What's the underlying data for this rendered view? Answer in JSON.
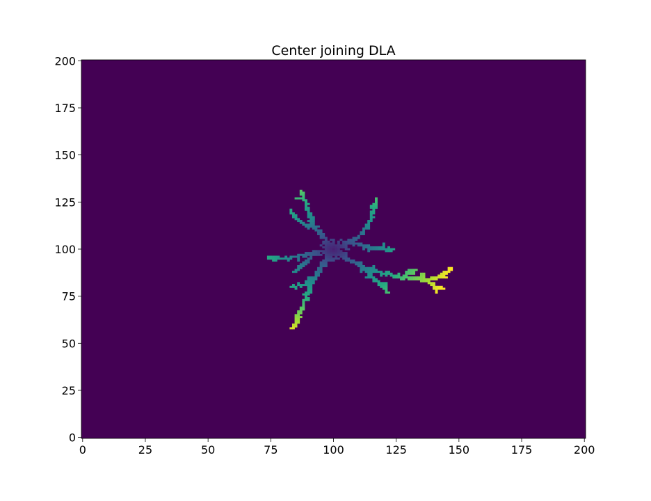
{
  "chart_data": {
    "type": "heatmap",
    "title": "Center joining DLA",
    "xlabel": "",
    "ylabel": "",
    "xlim": [
      0,
      201
    ],
    "ylim": [
      0,
      201
    ],
    "x_ticks": [
      0,
      25,
      50,
      75,
      100,
      125,
      150,
      175,
      200
    ],
    "y_ticks": [
      0,
      25,
      50,
      75,
      100,
      125,
      150,
      175,
      200
    ],
    "x_tick_labels": [
      "0",
      "25",
      "50",
      "75",
      "100",
      "125",
      "150",
      "175",
      "200"
    ],
    "y_tick_labels": [
      "0",
      "25",
      "50",
      "75",
      "100",
      "125",
      "150",
      "175",
      "200"
    ],
    "colormap": "viridis",
    "background_color": "#440154",
    "grid": false,
    "seed": [
      100,
      100
    ],
    "branches": [
      {
        "name": "upper-left",
        "points": [
          [
            100,
            100
          ],
          [
            96,
            106
          ],
          [
            92,
            112
          ],
          [
            90,
            118
          ],
          [
            89,
            124
          ],
          [
            87,
            130
          ]
        ]
      },
      {
        "name": "upper-left-side",
        "points": [
          [
            92,
            112
          ],
          [
            88,
            113
          ],
          [
            85,
            116
          ],
          [
            83,
            120
          ]
        ]
      },
      {
        "name": "upper-right",
        "points": [
          [
            100,
            100
          ],
          [
            106,
            104
          ],
          [
            111,
            108
          ],
          [
            114,
            113
          ],
          [
            116,
            120
          ],
          [
            117,
            126
          ]
        ]
      },
      {
        "name": "right-side",
        "points": [
          [
            108,
            103
          ],
          [
            113,
            101
          ],
          [
            119,
            100
          ],
          [
            124,
            100
          ]
        ]
      },
      {
        "name": "left",
        "points": [
          [
            100,
            100
          ],
          [
            94,
            99
          ],
          [
            88,
            97
          ],
          [
            82,
            95
          ],
          [
            77,
            95
          ],
          [
            74,
            96
          ]
        ]
      },
      {
        "name": "left-lower",
        "points": [
          [
            94,
            99
          ],
          [
            88,
            92
          ],
          [
            85,
            88
          ]
        ]
      },
      {
        "name": "lower-left",
        "points": [
          [
            100,
            100
          ],
          [
            96,
            92
          ],
          [
            93,
            85
          ],
          [
            90,
            78
          ],
          [
            88,
            71
          ],
          [
            86,
            64
          ],
          [
            84,
            58
          ]
        ]
      },
      {
        "name": "lower-left-side",
        "points": [
          [
            93,
            85
          ],
          [
            88,
            81
          ],
          [
            83,
            80
          ]
        ]
      },
      {
        "name": "lower-right",
        "points": [
          [
            100,
            100
          ],
          [
            106,
            94
          ],
          [
            112,
            90
          ],
          [
            120,
            87
          ],
          [
            128,
            85
          ],
          [
            136,
            84
          ],
          [
            142,
            85
          ],
          [
            147,
            90
          ]
        ]
      },
      {
        "name": "lower-right-drop",
        "points": [
          [
            112,
            90
          ],
          [
            115,
            85
          ],
          [
            120,
            80
          ],
          [
            121,
            77
          ]
        ]
      },
      {
        "name": "right-end-drop",
        "points": [
          [
            136,
            84
          ],
          [
            140,
            80
          ],
          [
            144,
            79
          ]
        ]
      },
      {
        "name": "right-end-rise",
        "points": [
          [
            128,
            85
          ],
          [
            130,
            88
          ],
          [
            132,
            89
          ]
        ]
      }
    ]
  }
}
